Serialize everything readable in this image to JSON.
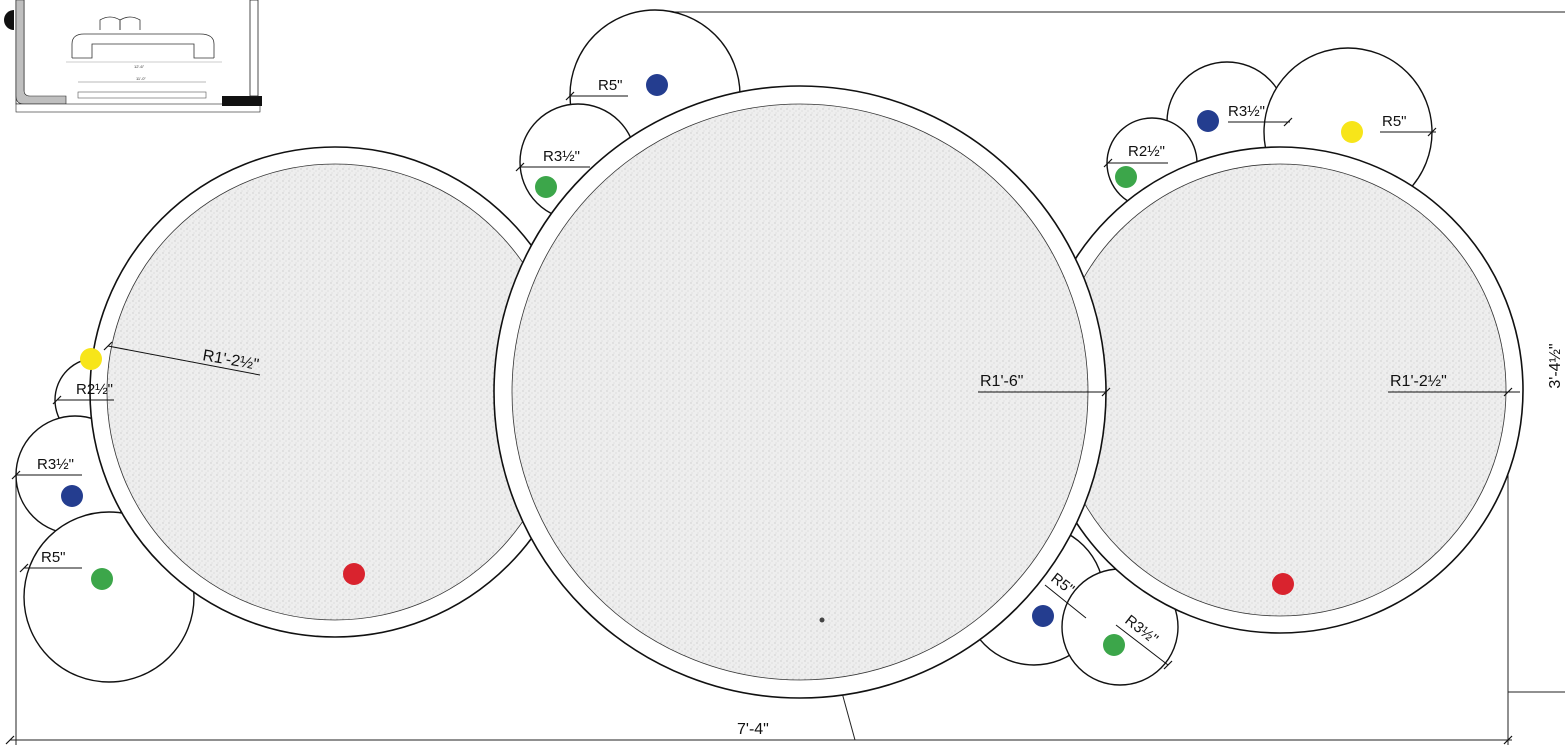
{
  "dimensions": {
    "overall_width": "7'-4\"",
    "overall_height": "3'-4½\""
  },
  "tables": [
    {
      "id": "left",
      "radius_label": "R1'-2½\""
    },
    {
      "id": "center",
      "radius_label": "R1'-6\""
    },
    {
      "id": "right",
      "radius_label": "R1'-2½\""
    }
  ],
  "small_circles": [
    {
      "id": "top-center-large",
      "radius_label": "R5\"",
      "dot": "blue"
    },
    {
      "id": "top-center-small",
      "radius_label": "R3½\"",
      "dot": "green"
    },
    {
      "id": "top-right-mid",
      "radius_label": "R3½\"",
      "dot": "blue"
    },
    {
      "id": "top-right-large",
      "radius_label": "R5\"",
      "dot": "yellow"
    },
    {
      "id": "top-right-small",
      "radius_label": "R2½\"",
      "dot": "green"
    },
    {
      "id": "left-small",
      "radius_label": "R2½\"",
      "dot": "yellow"
    },
    {
      "id": "left-mid",
      "radius_label": "R3½\"",
      "dot": "blue"
    },
    {
      "id": "left-large",
      "radius_label": "R5\"",
      "dot": "green"
    },
    {
      "id": "bottom-right-large",
      "radius_label": "R5\"",
      "dot": "blue"
    },
    {
      "id": "bottom-right-mid",
      "radius_label": "R3½\"",
      "dot": "green"
    }
  ],
  "thumbnail": {
    "dim_upper": "12'-6\"",
    "dim_lower": "11'-0\""
  },
  "colors": {
    "red": "#d9232e",
    "blue": "#243d8f",
    "green": "#3ca64a",
    "yellow": "#f7e51a",
    "line": "#111111",
    "fill": "#ececec"
  }
}
